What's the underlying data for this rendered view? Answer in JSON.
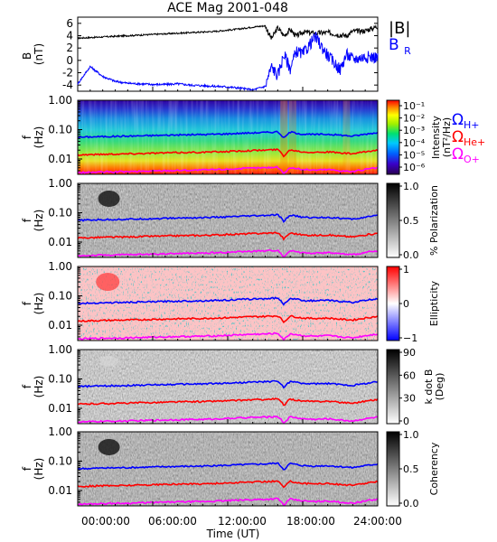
{
  "title": "ACE Mag 2001-048",
  "colors": {
    "ion_h": "#0000ff",
    "ion_he": "#ff0000",
    "ion_o": "#ff00ff",
    "b_total": "#000000",
    "b_r": "#0000ff"
  },
  "panel_labels": {
    "field": "B\n(nT)",
    "freq": "f\n(Hz)"
  },
  "ion_labels": [
    {
      "sym": "Ω",
      "sub": "H+",
      "color": "#0000ff"
    },
    {
      "sym": "Ω",
      "sub": "He+",
      "color": "#ff0000"
    },
    {
      "sym": "Ω",
      "sub": "O+",
      "color": "#ff00ff"
    }
  ],
  "field_legend": [
    {
      "text": "|B|",
      "color": "#000000"
    },
    {
      "text": "B",
      "sub": "R",
      "color": "#0000ff"
    }
  ],
  "chart_data": [
    {
      "type": "line",
      "panel": "magnetic field",
      "ylabel": "B (nT)",
      "ylim": [
        -5,
        7
      ],
      "yticks": [
        -4,
        -2,
        0,
        2,
        4,
        6
      ],
      "x_hours": [
        0,
        1,
        2,
        3,
        4,
        5,
        6,
        7,
        8,
        9,
        10,
        11,
        12,
        13,
        14,
        15,
        15.5,
        16,
        16.5,
        17,
        17.5,
        18,
        19,
        20,
        21,
        21.5,
        22,
        23,
        24
      ],
      "series": [
        {
          "name": "|B|",
          "values": [
            3.6,
            3.7,
            3.8,
            3.9,
            4.0,
            4.1,
            4.2,
            4.3,
            4.4,
            4.5,
            4.6,
            4.7,
            4.9,
            5.1,
            5.4,
            5.6,
            3.5,
            5.3,
            4.0,
            5.0,
            3.9,
            4.6,
            4.4,
            4.5,
            4.1,
            4.0,
            4.7,
            4.8,
            5.5
          ]
        },
        {
          "name": "B_R",
          "values": [
            -3.8,
            -1.0,
            -2.6,
            -3.4,
            -3.7,
            -3.8,
            -3.9,
            -3.9,
            -3.8,
            -4.0,
            -4.1,
            -4.2,
            -4.3,
            -4.5,
            -4.8,
            -4.2,
            -1.0,
            -2.5,
            1.0,
            -1.3,
            1.5,
            1.0,
            3.8,
            0.8,
            -1.5,
            1.0,
            0.2,
            0.6,
            0.5
          ]
        }
      ]
    },
    {
      "type": "heatmap",
      "panel": "power spectral density",
      "ylabel": "f (Hz)",
      "yscale": "log",
      "ylim": [
        0.003,
        1.0
      ],
      "yticks": [
        "1.00",
        "0.10",
        "0.01"
      ],
      "colorbar": {
        "label": "Intensity (nT²/Hz)",
        "scale": "log",
        "ticks": [
          "10⁻¹",
          "10⁻²",
          "10⁻³",
          "10⁻⁴",
          "10⁻⁵",
          "10⁻⁶"
        ],
        "palette": "rainbow"
      }
    },
    {
      "type": "heatmap",
      "panel": "polarization",
      "ylabel": "f (Hz)",
      "yscale": "log",
      "colorbar": {
        "label": "% Polarization",
        "ticks": [
          "1.0",
          "0.5",
          "0.0"
        ],
        "palette": "grayscale"
      }
    },
    {
      "type": "heatmap",
      "panel": "ellipticity",
      "ylabel": "f (Hz)",
      "yscale": "log",
      "colorbar": {
        "label": "Ellipticity",
        "ticks": [
          "1",
          "0",
          "−1"
        ],
        "palette": "blue-white-red"
      }
    },
    {
      "type": "heatmap",
      "panel": "wave normal angle",
      "ylabel": "f (Hz)",
      "yscale": "log",
      "colorbar": {
        "label": "k dot B (Deg)",
        "ticks": [
          "90",
          "60",
          "30",
          "0"
        ],
        "palette": "grayscale"
      }
    },
    {
      "type": "heatmap",
      "panel": "coherency",
      "ylabel": "f (Hz)",
      "yscale": "log",
      "colorbar": {
        "label": "Coherency",
        "ticks": [
          "1.0",
          "0.5",
          "0.0"
        ],
        "palette": "grayscale"
      }
    },
    {
      "type": "line",
      "panel": "ion gyrofrequencies (overlaid on every spectral panel)",
      "x_hours": [
        0,
        2,
        4,
        6,
        8,
        10,
        12,
        14,
        15,
        16,
        16.5,
        17,
        18,
        19,
        20,
        21,
        22,
        23,
        24
      ],
      "series": [
        {
          "name": "Ω H+",
          "values": [
            0.055,
            0.058,
            0.06,
            0.063,
            0.066,
            0.068,
            0.072,
            0.078,
            0.08,
            0.085,
            0.05,
            0.083,
            0.07,
            0.068,
            0.07,
            0.065,
            0.06,
            0.07,
            0.08
          ]
        },
        {
          "name": "Ω He+",
          "values": [
            0.0138,
            0.0145,
            0.015,
            0.0158,
            0.0165,
            0.017,
            0.018,
            0.0195,
            0.02,
            0.021,
            0.0125,
            0.0205,
            0.0175,
            0.017,
            0.0175,
            0.016,
            0.015,
            0.0175,
            0.02
          ]
        },
        {
          "name": "Ω O+",
          "values": [
            0.0034,
            0.0036,
            0.0037,
            0.0039,
            0.0041,
            0.0042,
            0.0045,
            0.0049,
            0.005,
            0.0053,
            0.0031,
            0.0051,
            0.0044,
            0.0042,
            0.0044,
            0.004,
            0.0037,
            0.0044,
            0.005
          ]
        }
      ]
    }
  ],
  "x_axis": {
    "label": "Time (UT)",
    "ticks": [
      "00:00:00",
      "06:00:00",
      "12:00:00",
      "18:00:00",
      "24:00:00"
    ]
  },
  "cb_labels": {
    "intensity": "Intensity",
    "intensity_unit": "(nT²/Hz)",
    "polarization": "% Polarization",
    "ellipticity": "Ellipticity",
    "kdotb": "k dot B",
    "kdotb_unit": "(Deg)",
    "coherency": "Coherency"
  }
}
